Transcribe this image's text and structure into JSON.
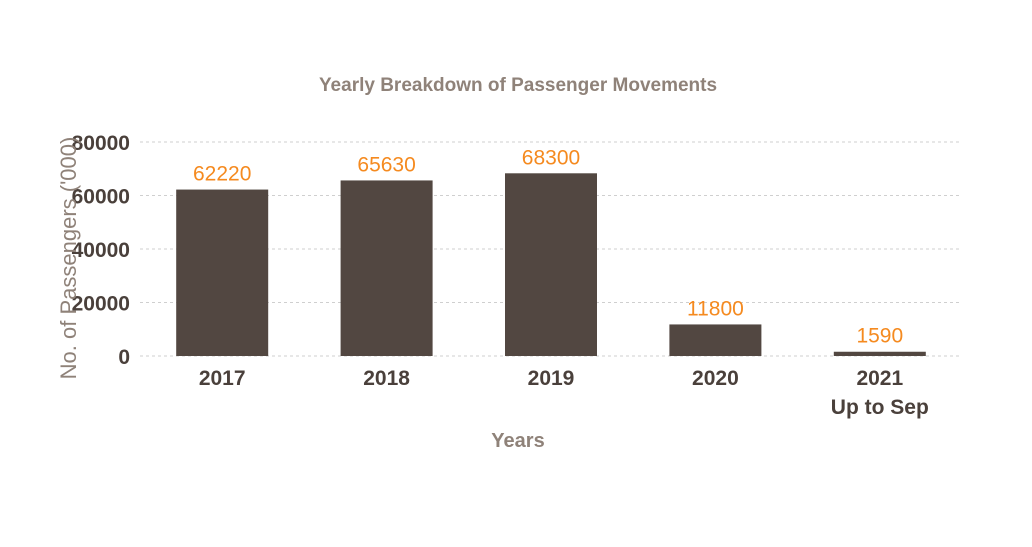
{
  "chart_data": {
    "type": "bar",
    "title": "Yearly Breakdown of Passenger Movements",
    "xlabel": "Years",
    "ylabel": "No. of Passengers ('000)",
    "categories": [
      [
        "2017"
      ],
      [
        "2018"
      ],
      [
        "2019"
      ],
      [
        "2020"
      ],
      [
        "2021",
        "Up to Sep"
      ]
    ],
    "values": [
      62220,
      65630,
      68300,
      11800,
      1590
    ],
    "data_labels": [
      "62220",
      "65630",
      "68300",
      "11800",
      "1590"
    ],
    "ylim": [
      0,
      80000
    ],
    "yticks": [
      0,
      20000,
      40000,
      60000,
      80000
    ],
    "ytick_labels": [
      "0",
      "20000",
      "40000",
      "60000",
      "80000"
    ],
    "grid": true,
    "legend": false,
    "colors": {
      "bar": "#524741",
      "data_label": "#f58a1f",
      "title": "#8f8279",
      "tick": "#4a403b",
      "grid": "#cfcfcf"
    }
  }
}
